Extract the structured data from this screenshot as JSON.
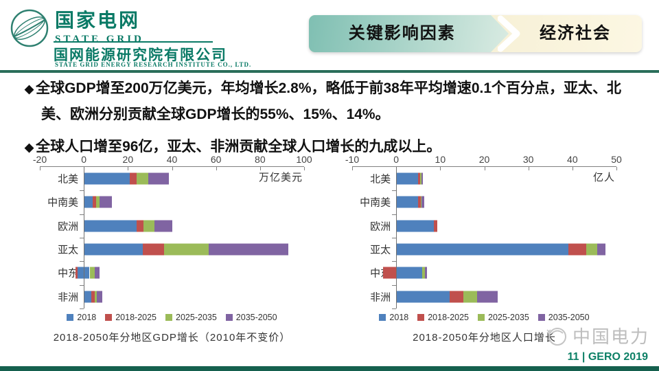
{
  "header": {
    "brand_cn": "国家电网",
    "brand_en": "STATE GRID",
    "institute_cn": "国网能源研究院有限公司",
    "institute_en": "STATE GRID ENERGY RESEARCH INSTITUTE CO., LTD.",
    "banner": {
      "left_label": "关键影响因素",
      "right_label": "经济社会"
    }
  },
  "bullets": {
    "glyph": "◆",
    "items": [
      "全球GDP增至200万亿美元，年均增长2.8%，略低于前38年平均增速0.1个百分点，亚太、北美、欧洲分别贡献全球GDP增长的55%、15%、14%。",
      "全球人口增至96亿，亚太、非洲贡献全球人口增长的九成以上。"
    ]
  },
  "colors": {
    "brand_green": "#0a7a66",
    "divider_green": "#2a6e5a",
    "footer_bar_green": "#15604e",
    "page_label_green": "#0d8066",
    "series_blue": "#4f81bd",
    "series_red": "#c0504d",
    "series_green": "#9bbb59",
    "series_purple": "#8064a2"
  },
  "chart_data": [
    {
      "type": "bar",
      "orientation": "horizontal",
      "stacked": true,
      "title": "2018-2050年分地区GDP增长（2010年不变价）",
      "unit_label": "万亿美元",
      "xlim": [
        -20,
        100
      ],
      "xticks": [
        -20,
        0,
        20,
        40,
        60,
        80,
        100
      ],
      "categories": [
        "北美",
        "中南美",
        "欧洲",
        "亚太",
        "中东",
        "非洲"
      ],
      "legend": [
        "2018",
        "2018-2025",
        "2025-2035",
        "2035-2050"
      ],
      "series_colors": [
        "#4f81bd",
        "#c0504d",
        "#9bbb59",
        "#8064a2"
      ],
      "legend_position": "bottom",
      "grid": false,
      "bars": [
        [
          {
            "series": 0,
            "from": 0,
            "to": 20.7
          },
          {
            "series": 1,
            "from": 20.7,
            "to": 23.8
          },
          {
            "series": 2,
            "from": 23.8,
            "to": 29.2
          },
          {
            "series": 3,
            "from": 29.2,
            "to": 38.7
          }
        ],
        [
          {
            "series": 0,
            "from": 0,
            "to": 4.1
          },
          {
            "series": 1,
            "from": 4.1,
            "to": 5.6
          },
          {
            "series": 2,
            "from": 5.6,
            "to": 7.0
          },
          {
            "series": 3,
            "from": 7.0,
            "to": 12.8
          }
        ],
        [
          {
            "series": 0,
            "from": 0,
            "to": 23.9
          },
          {
            "series": 1,
            "from": 23.9,
            "to": 27.0
          },
          {
            "series": 2,
            "from": 27.0,
            "to": 32.0
          },
          {
            "series": 3,
            "from": 32.0,
            "to": 40.2
          }
        ],
        [
          {
            "series": 0,
            "from": 0,
            "to": 26.8
          },
          {
            "series": 1,
            "from": 26.8,
            "to": 36.3
          },
          {
            "series": 2,
            "from": 36.3,
            "to": 56.8
          },
          {
            "series": 3,
            "from": 56.8,
            "to": 92.9
          }
        ],
        [
          {
            "series": 1,
            "from": -3.8,
            "to": -3.0
          },
          {
            "series": 0,
            "from": -3.0,
            "to": 2.6
          },
          {
            "series": 2,
            "from": 2.6,
            "to": 4.8
          },
          {
            "series": 3,
            "from": 4.8,
            "to": 7.0
          }
        ],
        [
          {
            "series": 0,
            "from": 0,
            "to": 3.5
          },
          {
            "series": 1,
            "from": 3.5,
            "to": 4.8
          },
          {
            "series": 2,
            "from": 4.8,
            "to": 6.0
          },
          {
            "series": 3,
            "from": 6.0,
            "to": 8.5
          }
        ]
      ]
    },
    {
      "type": "bar",
      "orientation": "horizontal",
      "stacked": true,
      "title": "2018-2050年分地区人口增长",
      "unit_label": "亿人",
      "xlim": [
        -10,
        50
      ],
      "xticks": [
        -10,
        0,
        10,
        20,
        30,
        40,
        50
      ],
      "categories": [
        "北美",
        "中南美",
        "欧洲",
        "亚太",
        "中东",
        "非洲"
      ],
      "legend": [
        "2018",
        "2018-2025",
        "2025-2035",
        "2035-2050"
      ],
      "series_colors": [
        "#4f81bd",
        "#c0504d",
        "#9bbb59",
        "#8064a2"
      ],
      "legend_position": "bottom",
      "grid": false,
      "bars": [
        [
          {
            "series": 0,
            "from": 0,
            "to": 5.0
          },
          {
            "series": 1,
            "from": 5.0,
            "to": 5.4
          },
          {
            "series": 2,
            "from": 5.4,
            "to": 5.8
          },
          {
            "series": 3,
            "from": 5.8,
            "to": 6.1
          }
        ],
        [
          {
            "series": 0,
            "from": 0,
            "to": 4.9
          },
          {
            "series": 1,
            "from": 4.9,
            "to": 5.6
          },
          {
            "series": 2,
            "from": 5.6,
            "to": 5.8
          },
          {
            "series": 3,
            "from": 5.8,
            "to": 6.3
          }
        ],
        [
          {
            "series": 0,
            "from": 0,
            "to": 8.5
          },
          {
            "series": 1,
            "from": 8.5,
            "to": 9.3
          }
        ],
        [
          {
            "series": 0,
            "from": 0,
            "to": 39.1
          },
          {
            "series": 1,
            "from": 39.1,
            "to": 43.1
          },
          {
            "series": 2,
            "from": 43.1,
            "to": 45.7
          },
          {
            "series": 3,
            "from": 45.7,
            "to": 47.5
          }
        ],
        [
          {
            "series": 1,
            "from": -3.0,
            "to": 0
          },
          {
            "series": 0,
            "from": 0,
            "to": 5.9
          },
          {
            "series": 2,
            "from": 5.9,
            "to": 6.5
          },
          {
            "series": 3,
            "from": 6.5,
            "to": 7.0
          }
        ],
        [
          {
            "series": 0,
            "from": 0,
            "to": 12.1
          },
          {
            "series": 1,
            "from": 12.1,
            "to": 15.2
          },
          {
            "series": 2,
            "from": 15.2,
            "to": 18.3
          },
          {
            "series": 3,
            "from": 18.3,
            "to": 23.0
          }
        ]
      ]
    }
  ],
  "footer": {
    "watermark_text": "中国电力",
    "page_label": "11 | GERO 2019"
  }
}
